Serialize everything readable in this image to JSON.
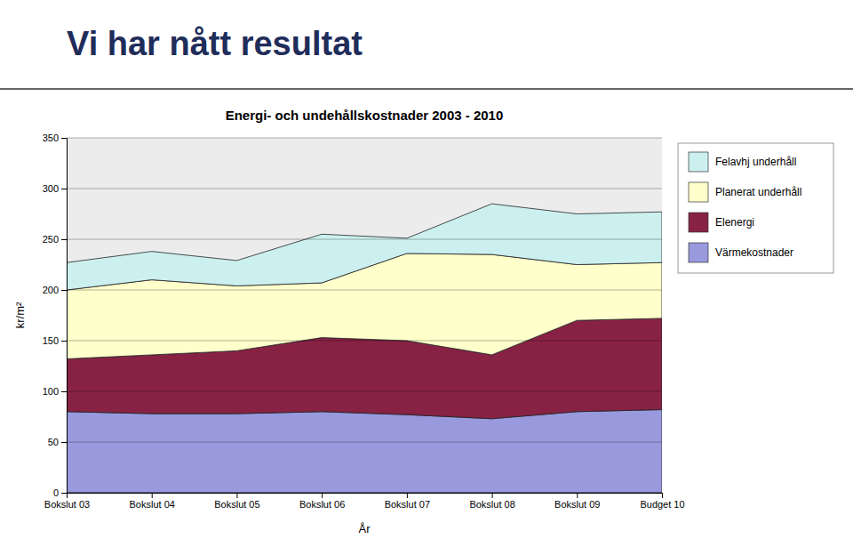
{
  "chart_data": {
    "type": "area",
    "stacked": true,
    "title": "Energi- och undehållskostnader 2003 - 2010",
    "subtitle": "Vi har nått resultat",
    "xlabel": "År",
    "ylabel": "kr/m²",
    "categories": [
      "Bokslut 03",
      "Bokslut 04",
      "Bokslut 05",
      "Bokslut 06",
      "Bokslut 07",
      "Bokslut 08",
      "Bokslut 09",
      "Budget 10"
    ],
    "series": [
      {
        "name": "Värmekostnader",
        "color": "#9999dd",
        "values": [
          80,
          78,
          78,
          80,
          77,
          73,
          80,
          82
        ]
      },
      {
        "name": "Elenergi",
        "color": "#882244",
        "values": [
          52,
          58,
          62,
          73,
          73,
          63,
          90,
          90
        ]
      },
      {
        "name": "Planerat underhåll",
        "color": "#ffffcc",
        "values": [
          68,
          74,
          64,
          54,
          86,
          99,
          55,
          55
        ]
      },
      {
        "name": "Felavhj underhåll",
        "color": "#ccf0f0",
        "values": [
          27,
          28,
          25,
          48,
          15,
          50,
          50,
          50
        ]
      }
    ],
    "ylim": [
      0,
      350
    ],
    "yticks": [
      0,
      50,
      100,
      150,
      200,
      250,
      300,
      350
    ],
    "grid": true
  }
}
